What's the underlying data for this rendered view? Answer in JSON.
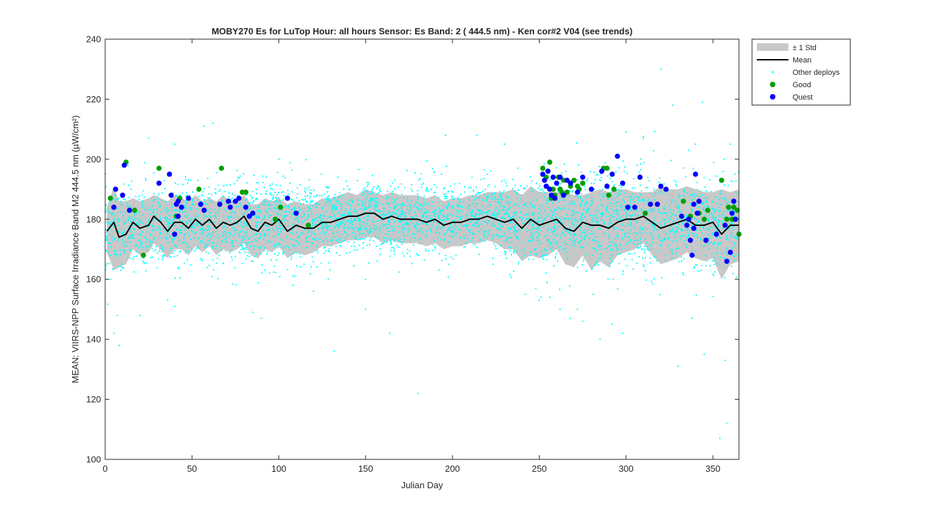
{
  "chart_data": {
    "type": "scatter",
    "title": "MOBY270   Es for LuTop  Hour: all hours  Sensor: Es Band: 2 ( 444.5 nm)  - Ken cor#2 V04 (see trends)",
    "xlabel": "Julian Day",
    "ylabel": "MEAN: VIIRS-NPP Surface Irradiance Band M2 444.5 nm (µW/cm²)",
    "xlim": [
      0,
      365
    ],
    "ylim": [
      100,
      240
    ],
    "xticks": [
      0,
      50,
      100,
      150,
      200,
      250,
      300,
      350
    ],
    "yticks": [
      100,
      120,
      140,
      160,
      180,
      200,
      220,
      240
    ],
    "grid": false,
    "legend_position": "outside-top-right",
    "legend": [
      {
        "name": "± 1 Std",
        "kind": "band",
        "color": "#c8c8c8"
      },
      {
        "name": "Mean",
        "kind": "line",
        "color": "#000000"
      },
      {
        "name": "Other deploys",
        "kind": "dot",
        "color": "#00ffff"
      },
      {
        "name": "Good",
        "kind": "marker",
        "color": "#00a000"
      },
      {
        "name": "Quest",
        "kind": "marker",
        "color": "#0000ff"
      }
    ],
    "mean": {
      "x": [
        1,
        5,
        8,
        12,
        16,
        20,
        25,
        28,
        32,
        36,
        40,
        44,
        48,
        52,
        56,
        60,
        64,
        68,
        72,
        76,
        80,
        84,
        88,
        92,
        96,
        100,
        105,
        110,
        115,
        120,
        125,
        130,
        135,
        140,
        145,
        150,
        155,
        160,
        165,
        170,
        175,
        180,
        185,
        190,
        195,
        200,
        205,
        210,
        215,
        220,
        225,
        230,
        235,
        240,
        245,
        250,
        255,
        260,
        265,
        270,
        275,
        280,
        285,
        290,
        295,
        300,
        305,
        310,
        315,
        320,
        325,
        330,
        335,
        340,
        345,
        350,
        355,
        360,
        365
      ],
      "y": [
        176,
        179,
        174,
        175,
        179,
        177,
        178,
        181,
        179,
        176,
        179,
        179,
        177,
        180,
        178,
        180,
        177,
        179,
        178,
        179,
        181,
        177,
        176,
        179,
        178,
        180,
        176,
        178,
        177,
        177,
        179,
        179,
        180,
        181,
        181,
        182,
        182,
        180,
        181,
        180,
        180,
        180,
        179,
        180,
        178,
        179,
        179,
        180,
        180,
        181,
        180,
        179,
        180,
        177,
        180,
        178,
        179,
        180,
        177,
        176,
        179,
        178,
        178,
        177,
        179,
        180,
        180,
        181,
        179,
        177,
        178,
        179,
        180,
        178,
        178,
        179,
        175,
        178,
        178
      ]
    },
    "std_band": {
      "x": [
        1,
        5,
        8,
        12,
        16,
        20,
        25,
        28,
        32,
        36,
        40,
        44,
        48,
        52,
        56,
        60,
        64,
        68,
        72,
        76,
        80,
        84,
        88,
        92,
        96,
        100,
        105,
        110,
        115,
        120,
        125,
        130,
        135,
        140,
        145,
        150,
        155,
        160,
        165,
        170,
        175,
        180,
        185,
        190,
        195,
        200,
        205,
        210,
        215,
        220,
        225,
        230,
        235,
        240,
        245,
        250,
        255,
        260,
        265,
        270,
        275,
        280,
        285,
        290,
        295,
        300,
        305,
        310,
        315,
        320,
        325,
        330,
        335,
        340,
        345,
        350,
        355,
        360,
        365
      ],
      "upper": [
        184,
        191,
        186,
        186,
        187,
        186,
        187,
        188,
        187,
        186,
        188,
        187,
        186,
        188,
        186,
        187,
        186,
        188,
        186,
        187,
        188,
        185,
        185,
        187,
        186,
        187,
        185,
        186,
        185,
        185,
        187,
        187,
        188,
        189,
        188,
        190,
        189,
        188,
        189,
        188,
        188,
        188,
        187,
        188,
        186,
        187,
        187,
        188,
        188,
        189,
        189,
        189,
        190,
        188,
        191,
        189,
        189,
        189,
        189,
        188,
        188,
        189,
        190,
        189,
        190,
        190,
        189,
        189,
        189,
        191,
        190,
        190,
        191,
        190,
        189,
        189,
        190,
        189,
        190
      ],
      "lower": [
        169,
        163,
        164,
        165,
        170,
        168,
        169,
        172,
        170,
        167,
        170,
        170,
        168,
        171,
        169,
        171,
        168,
        170,
        169,
        170,
        172,
        168,
        167,
        170,
        169,
        171,
        167,
        169,
        168,
        169,
        171,
        171,
        172,
        173,
        173,
        174,
        174,
        172,
        173,
        172,
        172,
        172,
        171,
        172,
        170,
        171,
        171,
        172,
        172,
        173,
        172,
        170,
        170,
        166,
        168,
        167,
        168,
        170,
        165,
        164,
        168,
        163,
        166,
        164,
        168,
        169,
        170,
        172,
        168,
        165,
        166,
        167,
        169,
        167,
        166,
        167,
        160,
        165,
        166
      ]
    },
    "good": {
      "x": [
        3,
        12,
        17,
        22,
        31,
        41,
        43,
        54,
        67,
        79,
        81,
        98,
        101,
        117,
        252,
        254,
        256,
        257,
        258,
        259,
        261,
        262,
        263,
        264,
        266,
        268,
        270,
        272,
        273,
        275,
        287,
        289,
        290,
        293,
        311,
        333,
        337,
        342,
        345,
        347,
        355,
        358,
        359,
        361,
        362,
        364,
        365
      ],
      "y": [
        187,
        199,
        183,
        168,
        197,
        181,
        187,
        190,
        197,
        189,
        189,
        180,
        184,
        178,
        197,
        194,
        199,
        187,
        190,
        188,
        194,
        190,
        189,
        193,
        189,
        191,
        193,
        191,
        190,
        192,
        197,
        197,
        188,
        190,
        182,
        186,
        181,
        182,
        180,
        183,
        193,
        180,
        184,
        180,
        184,
        183,
        175
      ]
    },
    "quest": {
      "x": [
        5,
        6,
        10,
        11,
        14,
        31,
        37,
        38,
        40,
        41,
        42,
        42,
        44,
        48,
        55,
        57,
        66,
        71,
        72,
        75,
        77,
        81,
        83,
        85,
        105,
        110,
        252,
        253,
        254,
        255,
        256,
        257,
        258,
        259,
        260,
        262,
        264,
        266,
        268,
        272,
        275,
        280,
        286,
        289,
        292,
        295,
        298,
        301,
        305,
        308,
        314,
        318,
        320,
        323,
        332,
        335,
        336,
        337,
        338,
        339,
        339,
        340,
        341,
        342,
        346,
        352,
        357,
        358,
        360,
        361,
        362,
        363
      ],
      "y": [
        184,
        190,
        188,
        198,
        183,
        192,
        195,
        188,
        175,
        185,
        186,
        181,
        184,
        187,
        185,
        183,
        185,
        186,
        184,
        186,
        187,
        184,
        181,
        182,
        187,
        182,
        195,
        193,
        191,
        196,
        190,
        188,
        194,
        187,
        192,
        194,
        188,
        193,
        192,
        189,
        194,
        190,
        196,
        191,
        195,
        201,
        192,
        184,
        184,
        194,
        185,
        185,
        191,
        190,
        181,
        178,
        180,
        173,
        168,
        177,
        185,
        195,
        182,
        186,
        173,
        175,
        178,
        166,
        169,
        182,
        186,
        180
      ]
    },
    "other": {
      "clouds": [
        {
          "x": [
            0,
            125
          ],
          "y": [
            176,
            180
          ],
          "sd": 7,
          "n": 1350
        },
        {
          "x": [
            125,
            230
          ],
          "y": [
            180,
            181
          ],
          "sd": 6,
          "n": 1200
        },
        {
          "x": [
            230,
            365
          ],
          "y": [
            179,
            179
          ],
          "sd": 8,
          "n": 1500
        }
      ],
      "outliers": [
        {
          "x": 180,
          "y": 122
        },
        {
          "x": 164,
          "y": 142
        },
        {
          "x": 132,
          "y": 136
        },
        {
          "x": 358,
          "y": 112
        },
        {
          "x": 354,
          "y": 107
        },
        {
          "x": 320,
          "y": 230
        },
        {
          "x": 327,
          "y": 218
        },
        {
          "x": 344,
          "y": 219
        },
        {
          "x": 357,
          "y": 133
        },
        {
          "x": 345,
          "y": 135
        },
        {
          "x": 5,
          "y": 142
        },
        {
          "x": 8,
          "y": 138
        },
        {
          "x": 7,
          "y": 148
        },
        {
          "x": 20,
          "y": 148
        },
        {
          "x": 360,
          "y": 205
        },
        {
          "x": 196,
          "y": 208
        },
        {
          "x": 214,
          "y": 208
        },
        {
          "x": 62,
          "y": 212
        },
        {
          "x": 57,
          "y": 211
        },
        {
          "x": 230,
          "y": 205
        },
        {
          "x": 242,
          "y": 155
        },
        {
          "x": 248,
          "y": 157
        },
        {
          "x": 250,
          "y": 153
        },
        {
          "x": 256,
          "y": 154
        },
        {
          "x": 262,
          "y": 150
        },
        {
          "x": 268,
          "y": 147
        },
        {
          "x": 272,
          "y": 150
        },
        {
          "x": 275,
          "y": 146
        },
        {
          "x": 281,
          "y": 155
        },
        {
          "x": 285,
          "y": 140
        },
        {
          "x": 292,
          "y": 145
        },
        {
          "x": 298,
          "y": 142
        },
        {
          "x": 338,
          "y": 147
        },
        {
          "x": 330,
          "y": 131
        },
        {
          "x": 36,
          "y": 153
        },
        {
          "x": 40,
          "y": 151
        },
        {
          "x": 85,
          "y": 149
        },
        {
          "x": 90,
          "y": 147
        },
        {
          "x": 120,
          "y": 156
        },
        {
          "x": 108,
          "y": 158
        },
        {
          "x": 150,
          "y": 150
        },
        {
          "x": 100,
          "y": 200
        },
        {
          "x": 40,
          "y": 205
        },
        {
          "x": 25,
          "y": 207
        },
        {
          "x": 300,
          "y": 209
        },
        {
          "x": 310,
          "y": 207
        },
        {
          "x": 340,
          "y": 205
        },
        {
          "x": 336,
          "y": 203
        }
      ]
    },
    "colors": {
      "band": "#c8c8c8",
      "mean": "#000000",
      "other": "#00ffff",
      "good": "#00a000",
      "quest": "#0000ff",
      "axis": "#262626"
    }
  }
}
